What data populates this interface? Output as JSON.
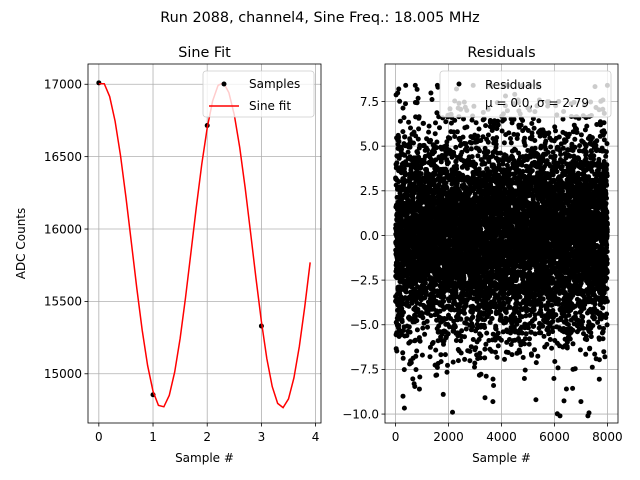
{
  "suptitle": "Run 2088, channel4, Sine Freq.: 18.005 MHz",
  "chart_data": [
    {
      "type": "line",
      "title": "Sine Fit",
      "xlabel": "Sample #",
      "ylabel": "ADC Counts",
      "xlim": [
        -0.2,
        4.1
      ],
      "ylim": [
        14660,
        17140
      ],
      "xticks": [
        0,
        1,
        2,
        3,
        4
      ],
      "xtick_labels": [
        "0",
        "1",
        "2",
        "3",
        "4"
      ],
      "yticks": [
        15000,
        15500,
        16000,
        16500,
        17000
      ],
      "ytick_labels": [
        "15000",
        "15500",
        "16000",
        "16500",
        "17000"
      ],
      "grid": true,
      "legend_position": "top-right",
      "series": [
        {
          "name": "Samples",
          "kind": "scatter",
          "color": "#000000",
          "x": [
            0,
            1,
            2,
            3
          ],
          "y": [
            17010,
            14855,
            16715,
            15330
          ]
        },
        {
          "name": "Sine fit",
          "kind": "line",
          "color": "#ff0000",
          "model": {
            "offset": 15890,
            "amplitude": 1125,
            "period": 2.2217,
            "phase_x": 0.05
          },
          "x_range": [
            0,
            3.9
          ],
          "x_step": 0.1
        }
      ]
    },
    {
      "type": "scatter",
      "title": "Residuals",
      "xlabel": "Sample #",
      "ylabel": "",
      "xlim": [
        -400,
        8400
      ],
      "ylim": [
        -10.5,
        9.6
      ],
      "xticks": [
        0,
        2000,
        4000,
        6000,
        8000
      ],
      "xtick_labels": [
        "0",
        "2000",
        "4000",
        "6000",
        "8000"
      ],
      "yticks": [
        -10.0,
        -7.5,
        -5.0,
        -2.5,
        0.0,
        2.5,
        5.0,
        7.5
      ],
      "ytick_labels": [
        "−10.0",
        "−7.5",
        "−5.0",
        "−2.5",
        "0.0",
        "2.5",
        "5.0",
        "7.5"
      ],
      "grid": true,
      "legend_position": "top-right",
      "legend_title": "Residuals",
      "legend_stats": "μ = 0.0, σ = 2.79",
      "series": [
        {
          "name": "Residuals",
          "kind": "scatter",
          "color": "#000000",
          "n_points": 8000,
          "mean": 0.0,
          "std": 2.79,
          "x_range": [
            0,
            8000
          ],
          "notable_points": [
            {
              "x": 120,
              "y": 8.2
            },
            {
              "x": 1600,
              "y": 8.3
            },
            {
              "x": 2300,
              "y": 8.2
            },
            {
              "x": 700,
              "y": -8.3
            },
            {
              "x": 1800,
              "y": -8.9
            },
            {
              "x": 2150,
              "y": -9.9
            },
            {
              "x": 5300,
              "y": -9.2
            },
            {
              "x": 7000,
              "y": -9.3
            },
            {
              "x": 3700,
              "y": -8.4
            },
            {
              "x": 6700,
              "y": -7.5
            },
            {
              "x": 900,
              "y": -8.6
            },
            {
              "x": 4500,
              "y": 7.9
            }
          ]
        }
      ]
    }
  ]
}
